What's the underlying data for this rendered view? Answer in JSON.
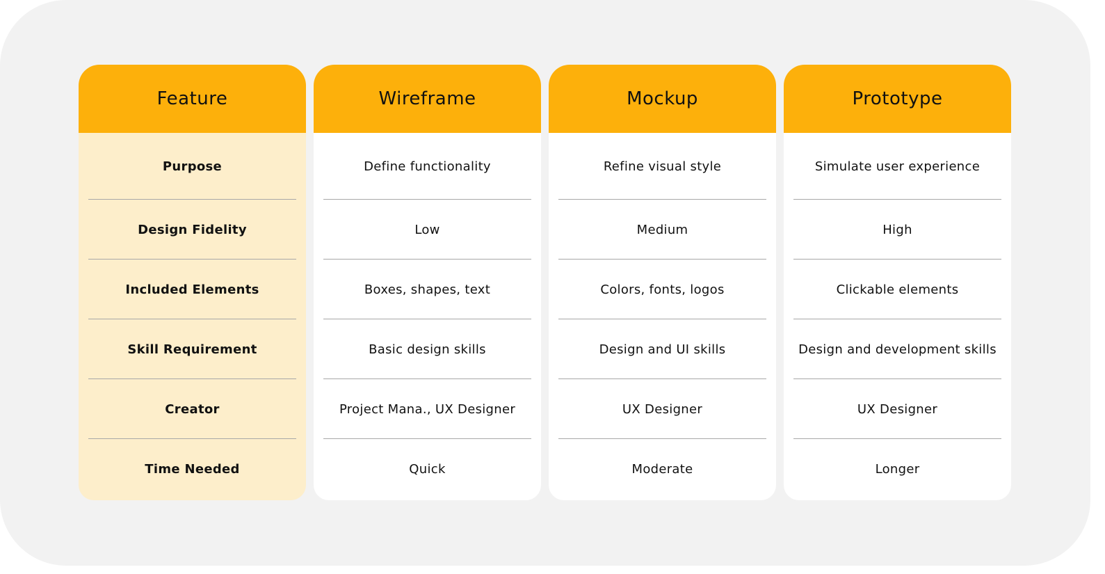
{
  "colors": {
    "header": "#fdb00b",
    "feature_column": "#fdeecb",
    "background": "#f2f2f2"
  },
  "table": {
    "columns": [
      {
        "header": "Feature",
        "cells": [
          "Purpose",
          "Design Fidelity",
          "Included Elements",
          "Skill Requirement",
          "Creator",
          "Time Needed"
        ]
      },
      {
        "header": "Wireframe",
        "cells": [
          "Define functionality",
          "Low",
          "Boxes, shapes, text",
          "Basic design skills",
          "Project Mana., UX Designer",
          "Quick"
        ]
      },
      {
        "header": "Mockup",
        "cells": [
          "Refine visual style",
          "Medium",
          "Colors, fonts, logos",
          "Design and UI skills",
          "UX Designer",
          "Moderate"
        ]
      },
      {
        "header": "Prototype",
        "cells": [
          "Simulate user experience",
          "High",
          "Clickable elements",
          "Design and development skills",
          "UX Designer",
          "Longer"
        ]
      }
    ]
  }
}
